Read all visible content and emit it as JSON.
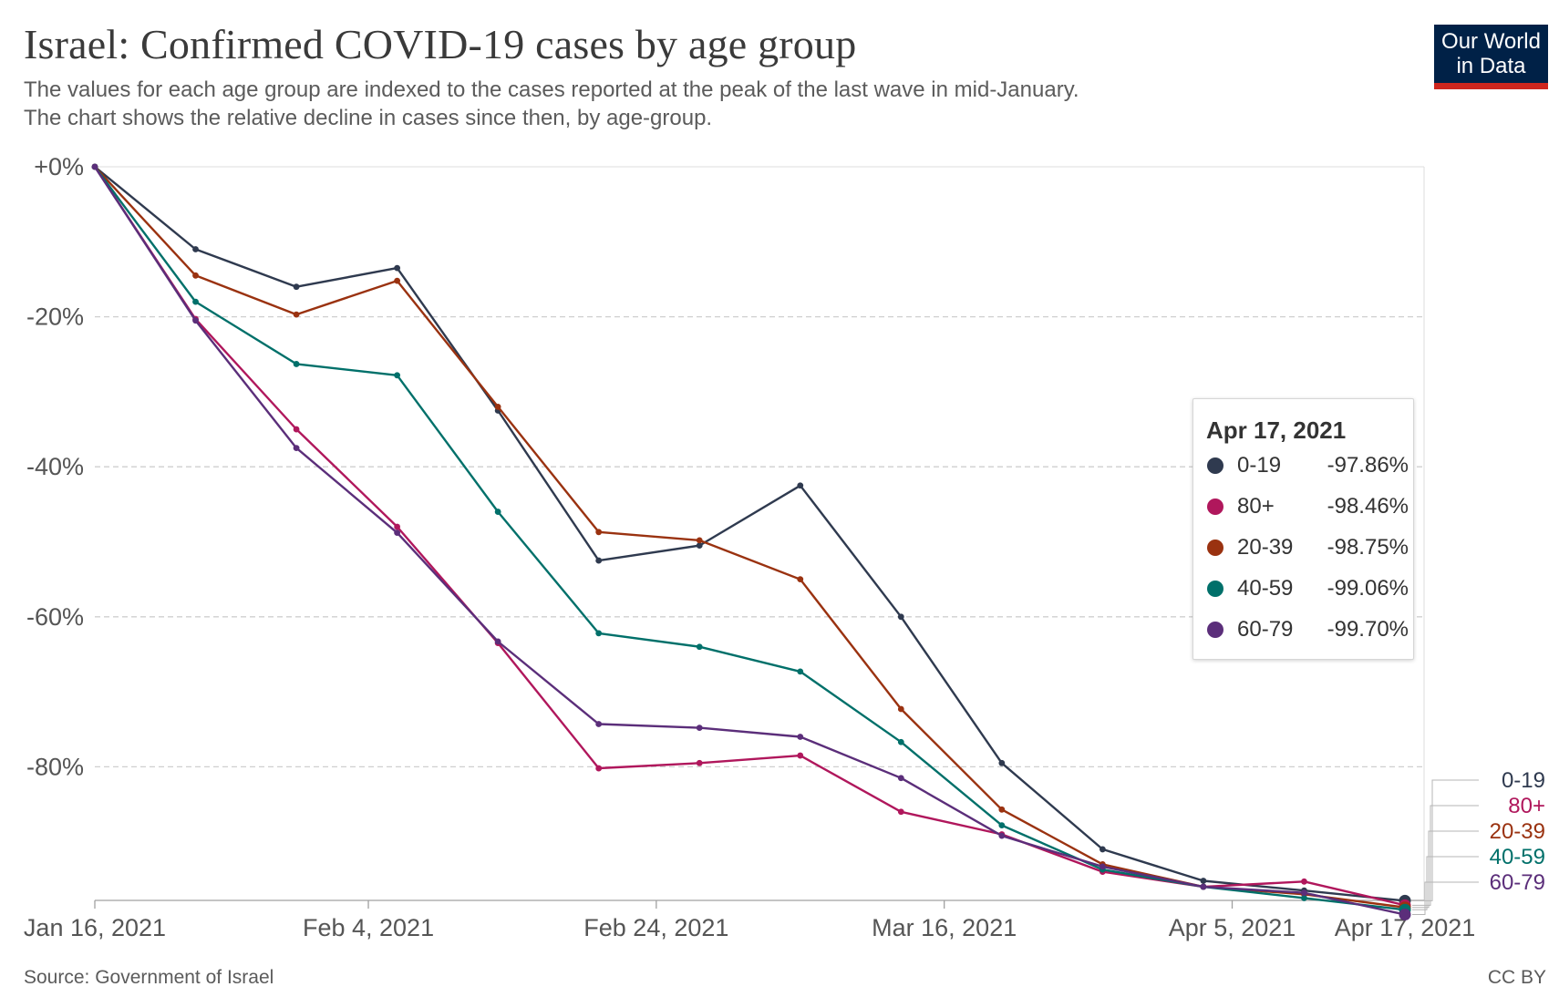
{
  "header": {
    "title": "Israel: Confirmed COVID-19 cases by age group",
    "subtitle_line1": "The values for each age group are indexed to the cases reported at the peak of the last wave in mid-January.",
    "subtitle_line2": "The chart shows the relative decline in cases since then, by age-group."
  },
  "logo": {
    "line1": "Our World",
    "line2": "in Data",
    "bg_color": "#002147",
    "accent_color": "#ce261e"
  },
  "footer": {
    "source": "Source: Government of Israel",
    "license": "CC BY"
  },
  "tooltip": {
    "date": "Apr 17, 2021",
    "rows": [
      {
        "label": "0-19",
        "value": "-97.86%",
        "color": "#2f3a4f"
      },
      {
        "label": "80+",
        "value": "-98.46%",
        "color": "#b0175c"
      },
      {
        "label": "20-39",
        "value": "-98.75%",
        "color": "#9a3210"
      },
      {
        "label": "40-59",
        "value": "-99.06%",
        "color": "#00706a"
      },
      {
        "label": "60-79",
        "value": "-99.70%",
        "color": "#5b2e7a"
      }
    ]
  },
  "chart_data": {
    "type": "line",
    "title": "Israel: Confirmed COVID-19 cases by age group",
    "x": [
      "2021-01-16",
      "2021-01-23",
      "2021-01-30",
      "2021-02-06",
      "2021-02-13",
      "2021-02-20",
      "2021-02-27",
      "2021-03-06",
      "2021-03-13",
      "2021-03-20",
      "2021-03-27",
      "2021-04-03",
      "2021-04-10",
      "2021-04-17"
    ],
    "xticks": [
      {
        "date": "2021-01-16",
        "label": "Jan 16, 2021"
      },
      {
        "date": "2021-02-04",
        "label": "Feb 4, 2021"
      },
      {
        "date": "2021-02-24",
        "label": "Feb 24, 2021"
      },
      {
        "date": "2021-03-16",
        "label": "Mar 16, 2021"
      },
      {
        "date": "2021-04-05",
        "label": "Apr 5, 2021"
      },
      {
        "date": "2021-04-17",
        "label": "Apr 17, 2021"
      }
    ],
    "yticks": [
      {
        "value": 0,
        "label": "+0%"
      },
      {
        "value": -20,
        "label": "-20%"
      },
      {
        "value": -40,
        "label": "-40%"
      },
      {
        "value": -60,
        "label": "-60%"
      },
      {
        "value": -80,
        "label": "-80%"
      }
    ],
    "ylim": [
      -100,
      0
    ],
    "grid": true,
    "series": [
      {
        "name": "0-19",
        "color": "#2f3a4f",
        "values": [
          0,
          -11,
          -16,
          -13.5,
          -32.5,
          -52.5,
          -50.5,
          -42.5,
          -60,
          -79.5,
          -91,
          -95.2,
          -96.5,
          -97.86
        ]
      },
      {
        "name": "80+",
        "color": "#b0175c",
        "values": [
          0,
          -20.3,
          -35,
          -48,
          -63.5,
          -80.2,
          -79.5,
          -78.5,
          -86,
          -89,
          -94,
          -96,
          -95.3,
          -98.46
        ]
      },
      {
        "name": "20-39",
        "color": "#9a3210",
        "values": [
          0,
          -14.5,
          -19.7,
          -15.2,
          -32,
          -48.7,
          -49.8,
          -55,
          -72.3,
          -85.7,
          -93,
          -96,
          -97,
          -98.75
        ]
      },
      {
        "name": "40-59",
        "color": "#00706a",
        "values": [
          0,
          -18,
          -26.3,
          -27.8,
          -46,
          -62.2,
          -64,
          -67.3,
          -76.7,
          -87.8,
          -93.7,
          -96,
          -97.5,
          -99.06
        ]
      },
      {
        "name": "60-79",
        "color": "#5b2e7a",
        "values": [
          0,
          -20.5,
          -37.5,
          -48.8,
          -63.3,
          -74.3,
          -74.8,
          -76,
          -81.5,
          -89.2,
          -93.3,
          -96,
          -96.8,
          -99.7
        ]
      }
    ]
  }
}
